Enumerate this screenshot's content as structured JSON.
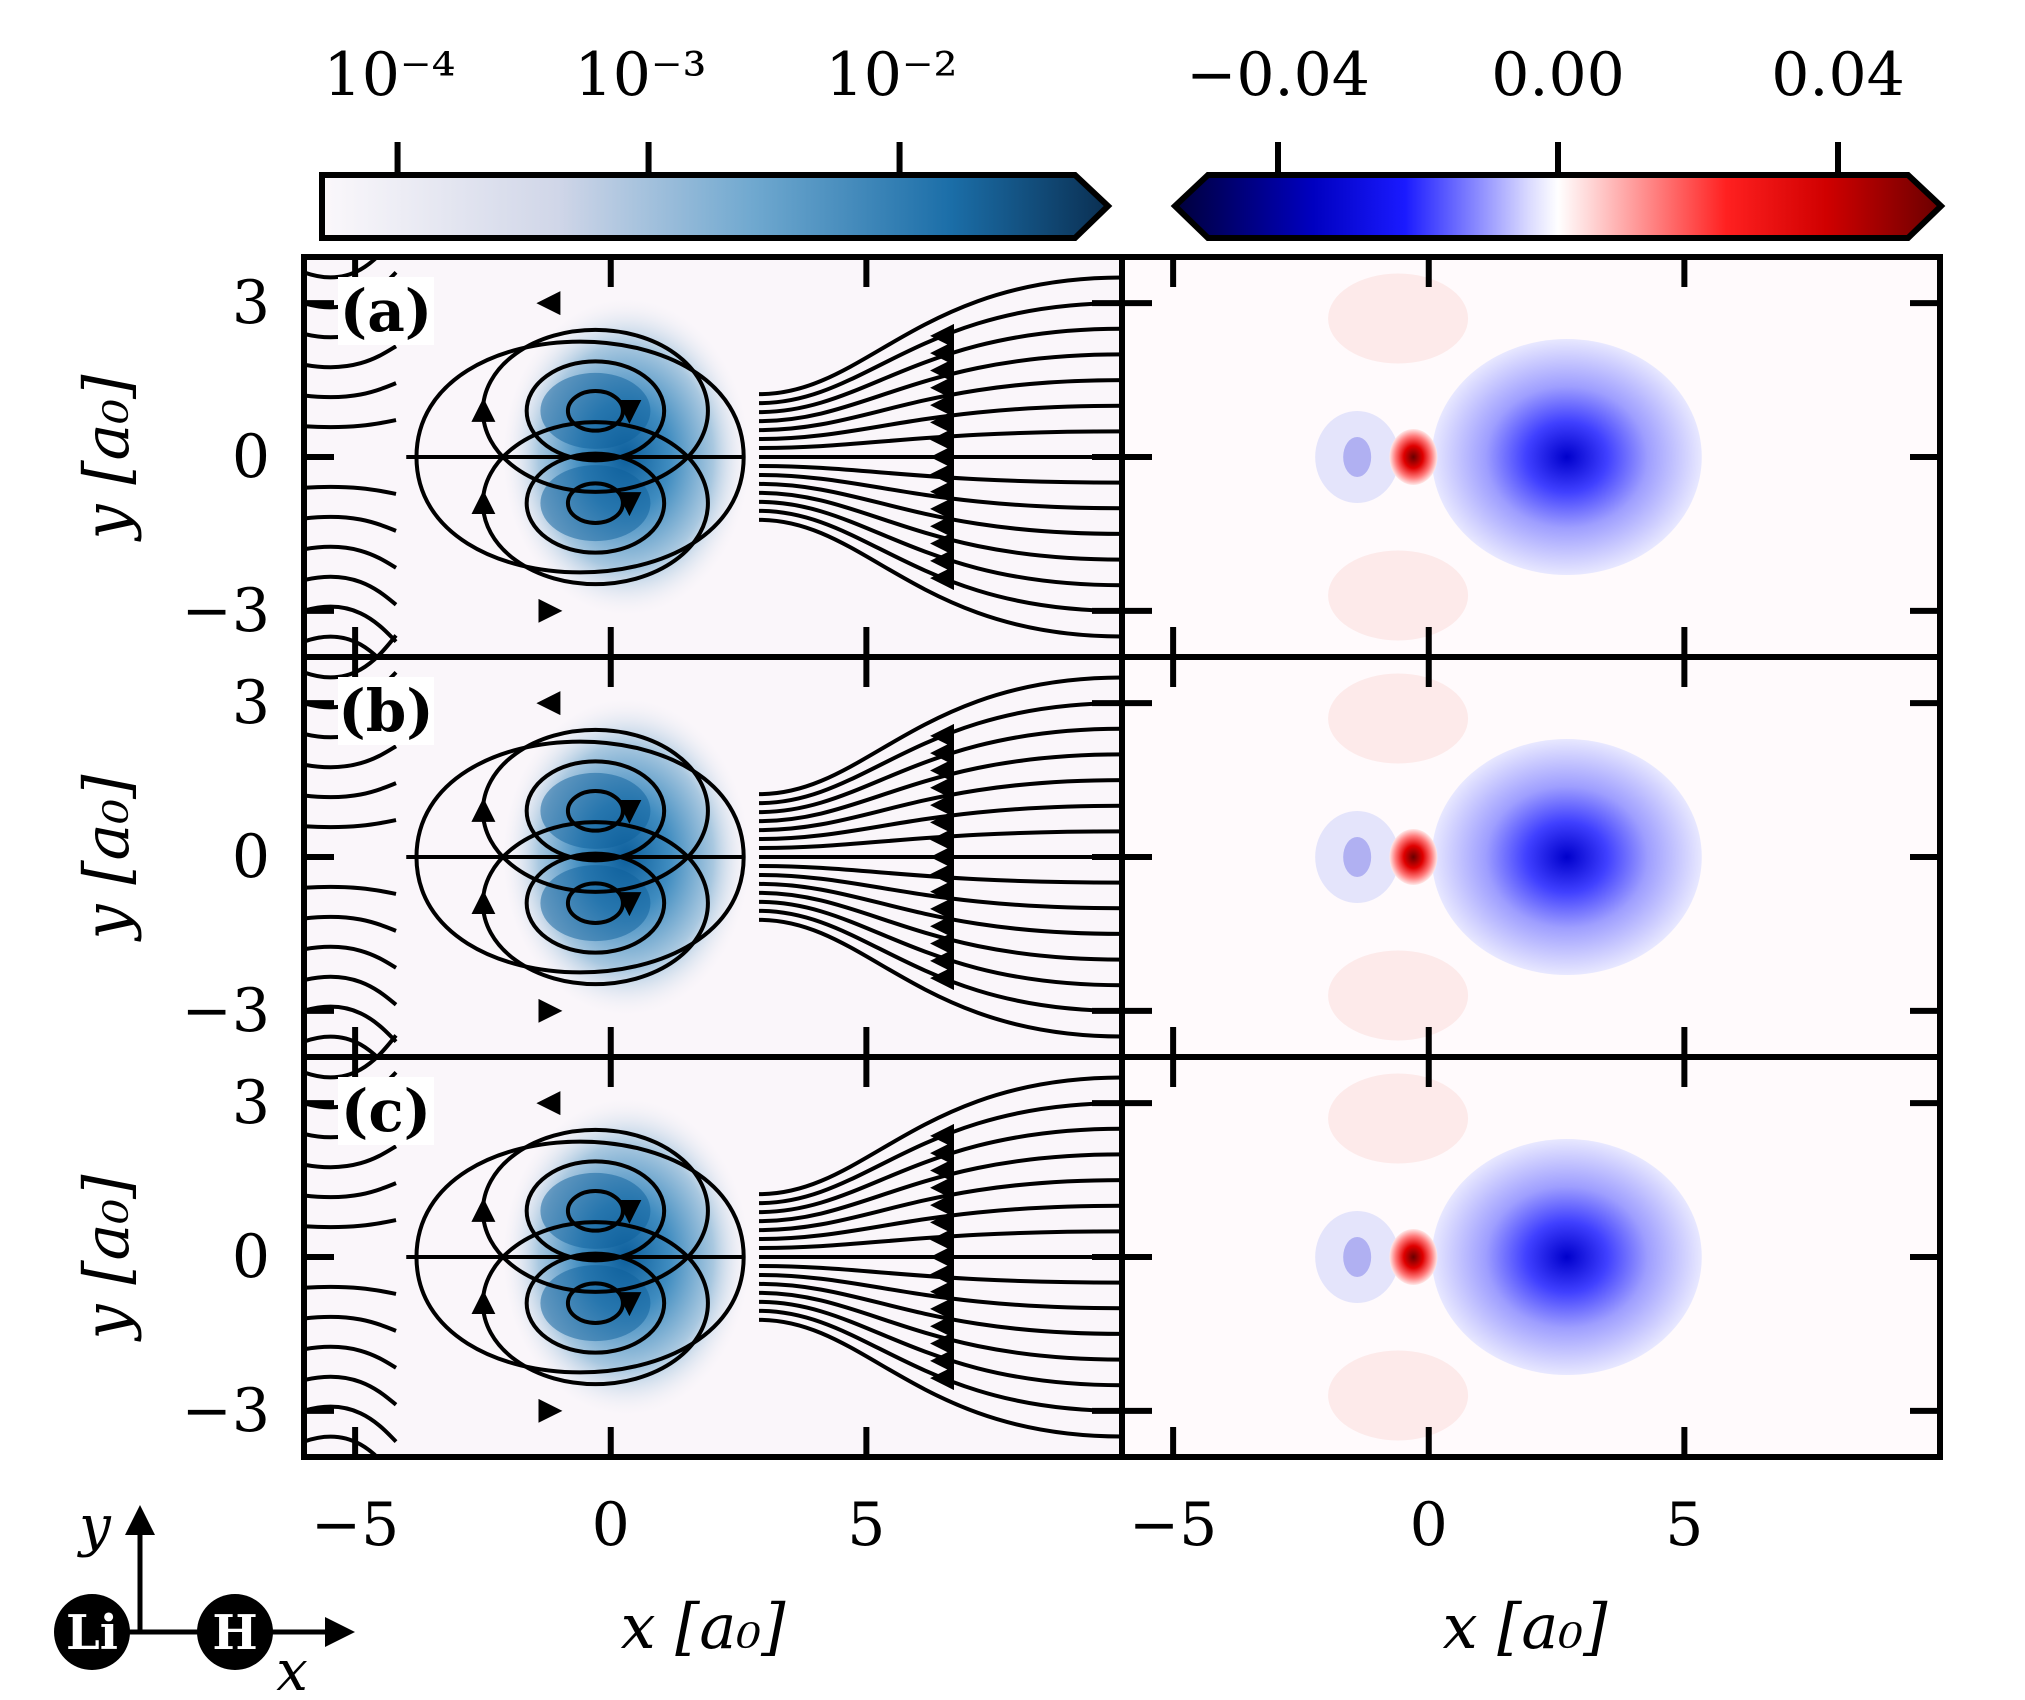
{
  "chart_data": {
    "type": "heatmap",
    "description_panels": [
      "(a)",
      "(b)",
      "(c)"
    ],
    "x_ticks": [
      -5,
      0,
      5
    ],
    "y_ticks": [
      -3,
      0,
      3
    ],
    "x_tick_labels": [
      "−5",
      "0",
      "5"
    ],
    "y_tick_labels": [
      "−3",
      "0",
      "3"
    ],
    "xlabel": "x [a₀]",
    "ylabel": "y [a₀]",
    "xlim": [
      -6,
      10
    ],
    "ylim": [
      -3.9,
      3.9
    ],
    "left_colorbar": {
      "scale": "log",
      "range": [
        5e-05,
        0.05
      ],
      "ticks": [
        "10⁻⁴",
        "10⁻³",
        "10⁻²"
      ],
      "colormap": "white-to-blue"
    },
    "right_colorbar": {
      "scale": "linear",
      "range": [
        -0.05,
        0.05
      ],
      "ticks": [
        "−0.04",
        "0.00",
        "0.04"
      ],
      "colormap": "seismic"
    },
    "left_panels": {
      "content": "current density magnitude with streamlines",
      "nuclei_x": [
        -0.3,
        2.7
      ]
    },
    "right_panels": {
      "content": "difference density contours",
      "features": [
        {
          "name": "red core",
          "x": -0.3,
          "y": 0,
          "sign": "positive"
        },
        {
          "name": "blue lobe",
          "x": 2.7,
          "y": 0,
          "sign": "negative"
        },
        {
          "name": "faint red lobes",
          "x": -0.6,
          "y": 2.7,
          "sign": "positive"
        }
      ]
    }
  },
  "legend_inset": {
    "x_axis_label": "x",
    "y_axis_label": "y",
    "atom1": "Li",
    "atom2": "H"
  }
}
